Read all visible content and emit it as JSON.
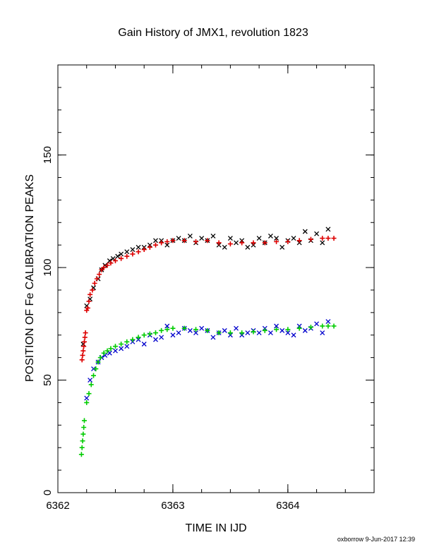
{
  "chart_data": {
    "type": "scatter",
    "title": "Gain History of JMX1, revolution 1823",
    "xlabel": "TIME IN IJD",
    "ylabel": "POSITION OF Fe CALIBRATION PEAKS",
    "xlim": [
      6362,
      6364.75
    ],
    "ylim": [
      0,
      190
    ],
    "x_ticks": [
      {
        "value": 6362,
        "label": "6362"
      },
      {
        "value": 6363,
        "label": "6363"
      },
      {
        "value": 6364,
        "label": "6364"
      }
    ],
    "y_ticks": [
      {
        "value": 0,
        "label": "0"
      },
      {
        "value": 50,
        "label": "50"
      },
      {
        "value": 100,
        "label": "100"
      },
      {
        "value": 150,
        "label": "150"
      }
    ],
    "grid": false,
    "legend": "none",
    "series": [
      {
        "marker": "x",
        "color": "#000000",
        "style": "points",
        "x": [
          6362.22,
          6362.25,
          6362.28,
          6362.31,
          6362.35,
          6362.38,
          6362.41,
          6362.45,
          6362.48,
          6362.52,
          6362.55,
          6362.6,
          6362.65,
          6362.7,
          6362.75,
          6362.8,
          6362.85,
          6362.9,
          6362.95,
          6363.0,
          6363.05,
          6363.1,
          6363.15,
          6363.2,
          6363.25,
          6363.3,
          6363.35,
          6363.4,
          6363.45,
          6363.5,
          6363.55,
          6363.6,
          6363.65,
          6363.7,
          6363.75,
          6363.8,
          6363.85,
          6363.9,
          6363.95,
          6364.0,
          6364.05,
          6364.1,
          6364.15,
          6364.2,
          6364.25,
          6364.3,
          6364.35
        ],
        "y": [
          66,
          83,
          86,
          91,
          95,
          99,
          101,
          103,
          104,
          105,
          106,
          107,
          108,
          109,
          109,
          110,
          112,
          112,
          110,
          112,
          113,
          112,
          114,
          111,
          113,
          112,
          114,
          110,
          109,
          113,
          111,
          112,
          109,
          110,
          113,
          111,
          114,
          113,
          109,
          112,
          113,
          111,
          116,
          112,
          115,
          111,
          117
        ]
      },
      {
        "marker": "+",
        "color": "#dd0000",
        "style": "points",
        "x": [
          6362.21,
          6362.215,
          6362.22,
          6362.225,
          6362.23,
          6362.235,
          6362.24,
          6362.25,
          6362.26,
          6362.27,
          6362.28,
          6362.3,
          6362.32,
          6362.34,
          6362.36,
          6362.38,
          6362.4,
          6362.43,
          6362.46,
          6362.5,
          6362.55,
          6362.6,
          6362.65,
          6362.7,
          6362.75,
          6362.8,
          6362.85,
          6362.9,
          6362.95,
          6363.0,
          6363.1,
          6363.2,
          6363.3,
          6363.4,
          6363.5,
          6363.6,
          6363.7,
          6363.8,
          6363.9,
          6364.0,
          6364.1,
          6364.2,
          6364.3,
          6364.35,
          6364.4
        ],
        "y": [
          59,
          61,
          63,
          65,
          67,
          69,
          71,
          81,
          82,
          85,
          88,
          90,
          93,
          95,
          97,
          99,
          100,
          101,
          102,
          103,
          104,
          105,
          106,
          107,
          108,
          109,
          110,
          111,
          111.5,
          112,
          112,
          111.5,
          112,
          111,
          110.5,
          111,
          111,
          111,
          111.5,
          111.5,
          112,
          112.5,
          113,
          113,
          113
        ]
      },
      {
        "marker": "x",
        "color": "#0000cc",
        "style": "points",
        "x": [
          6362.25,
          6362.28,
          6362.31,
          6362.35,
          6362.38,
          6362.41,
          6362.45,
          6362.5,
          6362.55,
          6362.6,
          6362.65,
          6362.7,
          6362.75,
          6362.8,
          6362.85,
          6362.9,
          6362.95,
          6363.0,
          6363.05,
          6363.1,
          6363.15,
          6363.2,
          6363.25,
          6363.3,
          6363.35,
          6363.4,
          6363.45,
          6363.5,
          6363.55,
          6363.6,
          6363.65,
          6363.7,
          6363.75,
          6363.8,
          6363.85,
          6363.9,
          6363.95,
          6364.0,
          6364.05,
          6364.1,
          6364.15,
          6364.2,
          6364.25,
          6364.3,
          6364.35
        ],
        "y": [
          42,
          50,
          55,
          58,
          60,
          61,
          62,
          63,
          64,
          65,
          67,
          68,
          66,
          70,
          68,
          69,
          74,
          70,
          71,
          73,
          72,
          71,
          73,
          72,
          69,
          71,
          72,
          70,
          73,
          70,
          71,
          72,
          71,
          73,
          71,
          74,
          72,
          71,
          70,
          74,
          72,
          73,
          75,
          71,
          76
        ]
      },
      {
        "marker": "+",
        "color": "#00cc00",
        "style": "points",
        "x": [
          6362.205,
          6362.21,
          6362.215,
          6362.22,
          6362.225,
          6362.23,
          6362.25,
          6362.27,
          6362.29,
          6362.31,
          6362.33,
          6362.35,
          6362.37,
          6362.4,
          6362.43,
          6362.46,
          6362.5,
          6362.55,
          6362.6,
          6362.65,
          6362.7,
          6362.75,
          6362.8,
          6362.85,
          6362.9,
          6362.95,
          6363.0,
          6363.1,
          6363.2,
          6363.3,
          6363.4,
          6363.5,
          6363.6,
          6363.7,
          6363.8,
          6363.9,
          6364.0,
          6364.1,
          6364.2,
          6364.3,
          6364.35,
          6364.4
        ],
        "y": [
          17,
          20,
          23,
          26,
          29,
          32,
          40,
          44,
          48,
          52,
          55,
          58,
          60,
          62,
          63,
          64,
          65,
          66,
          67,
          68,
          69,
          70,
          70.5,
          71,
          72,
          72.5,
          73,
          73,
          72.5,
          72,
          71,
          71,
          71,
          71.5,
          72,
          72.5,
          72.5,
          73,
          73.5,
          74,
          74,
          74
        ]
      }
    ],
    "annotations": {
      "footer": "oxborrow  9-Jun-2017 12:39"
    }
  }
}
